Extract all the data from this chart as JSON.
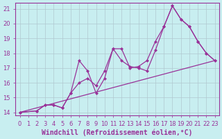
{
  "background_color": "#c8eef0",
  "grid_color": "#b0c8d0",
  "line_color": "#993399",
  "marker_color": "#993399",
  "xlabel": "Windchill (Refroidissement éolien,°C)",
  "xlim": [
    -0.5,
    23.5
  ],
  "ylim": [
    13.8,
    21.4
  ],
  "xticks": [
    0,
    1,
    2,
    3,
    4,
    5,
    6,
    7,
    8,
    9,
    10,
    11,
    12,
    13,
    14,
    15,
    16,
    17,
    18,
    19,
    20,
    21,
    22,
    23
  ],
  "yticks": [
    14,
    15,
    16,
    17,
    18,
    19,
    20,
    21
  ],
  "line1_x": [
    0,
    2,
    3,
    4,
    5,
    6,
    7,
    8,
    9,
    10,
    11,
    12,
    13,
    14,
    15,
    16,
    17,
    18,
    19,
    20,
    21,
    22,
    23
  ],
  "line1_y": [
    14.0,
    14.1,
    14.5,
    14.5,
    14.3,
    15.3,
    16.0,
    16.3,
    15.8,
    16.8,
    18.3,
    18.3,
    17.0,
    17.1,
    17.5,
    18.8,
    19.8,
    21.2,
    20.3,
    19.8,
    18.8,
    18.0,
    17.5
  ],
  "line2_x": [
    0,
    2,
    3,
    4,
    5,
    6,
    7,
    8,
    9,
    10,
    11,
    12,
    13,
    14,
    15,
    16,
    17,
    18,
    19,
    20,
    21,
    22,
    23
  ],
  "line2_y": [
    14.0,
    14.1,
    14.5,
    14.5,
    14.3,
    15.3,
    17.5,
    16.8,
    15.3,
    16.3,
    18.3,
    17.5,
    17.1,
    17.0,
    16.8,
    18.2,
    19.8,
    21.2,
    20.3,
    19.8,
    18.8,
    18.0,
    17.5
  ],
  "line3_x": [
    0,
    23
  ],
  "line3_y": [
    14.0,
    17.5
  ],
  "tick_fontsize": 6.0,
  "xlabel_fontsize": 7.0
}
